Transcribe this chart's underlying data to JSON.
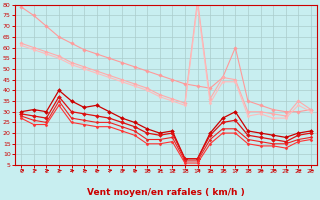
{
  "background_color": "#c8eef0",
  "grid_color": "#aacccc",
  "xlabel": "Vent moyen/en rafales ( km/h )",
  "xlim": [
    -0.5,
    23.5
  ],
  "ylim": [
    5,
    80
  ],
  "yticks": [
    5,
    10,
    15,
    20,
    25,
    30,
    35,
    40,
    45,
    50,
    55,
    60,
    65,
    70,
    75,
    80
  ],
  "xticks": [
    0,
    1,
    2,
    3,
    4,
    5,
    6,
    7,
    8,
    9,
    10,
    11,
    12,
    13,
    14,
    15,
    16,
    17,
    18,
    19,
    20,
    21,
    22,
    23
  ],
  "series": [
    {
      "x": [
        0,
        1,
        2,
        3,
        4,
        5,
        6,
        7,
        8,
        9,
        10,
        11,
        12,
        13,
        14,
        15,
        16,
        17,
        18,
        19,
        20,
        21,
        22,
        23
      ],
      "y": [
        79,
        75,
        70,
        65,
        62,
        59,
        57,
        55,
        53,
        51,
        49,
        47,
        45,
        43,
        42,
        41,
        46,
        60,
        35,
        33,
        31,
        30,
        30,
        31
      ],
      "color": "#ff9999",
      "lw": 0.8,
      "marker": "D",
      "ms": 1.8
    },
    {
      "x": [
        0,
        1,
        2,
        3,
        4,
        5,
        6,
        7,
        8,
        9,
        10,
        11,
        12,
        13,
        14,
        15,
        16,
        17,
        18,
        19,
        20,
        21,
        22,
        23
      ],
      "y": [
        62,
        60,
        58,
        56,
        53,
        51,
        49,
        47,
        45,
        43,
        41,
        38,
        36,
        34,
        82,
        36,
        46,
        45,
        30,
        30,
        29,
        28,
        35,
        31
      ],
      "color": "#ffaaaa",
      "lw": 0.8,
      "marker": "D",
      "ms": 1.8
    },
    {
      "x": [
        0,
        1,
        2,
        3,
        4,
        5,
        6,
        7,
        8,
        9,
        10,
        11,
        12,
        13,
        14,
        15,
        16,
        17,
        18,
        19,
        20,
        21,
        22,
        23
      ],
      "y": [
        61,
        59,
        57,
        55,
        52,
        50,
        48,
        46,
        44,
        42,
        40,
        37,
        35,
        33,
        80,
        34,
        44,
        44,
        28,
        29,
        27,
        27,
        33,
        30
      ],
      "color": "#ffbbbb",
      "lw": 0.8,
      "marker": "D",
      "ms": 1.5
    },
    {
      "x": [
        0,
        1,
        2,
        3,
        4,
        5,
        6,
        7,
        8,
        9,
        10,
        11,
        12,
        13,
        14,
        15,
        16,
        17,
        18,
        19,
        20,
        21,
        22,
        23
      ],
      "y": [
        30,
        31,
        30,
        40,
        35,
        32,
        33,
        30,
        27,
        25,
        22,
        20,
        21,
        8,
        8,
        20,
        27,
        30,
        21,
        20,
        19,
        18,
        20,
        21
      ],
      "color": "#cc0000",
      "lw": 0.9,
      "marker": "D",
      "ms": 2.0
    },
    {
      "x": [
        0,
        1,
        2,
        3,
        4,
        5,
        6,
        7,
        8,
        9,
        10,
        11,
        12,
        13,
        14,
        15,
        16,
        17,
        18,
        19,
        20,
        21,
        22,
        23
      ],
      "y": [
        29,
        28,
        27,
        37,
        30,
        29,
        28,
        27,
        25,
        23,
        20,
        19,
        20,
        8,
        8,
        19,
        25,
        26,
        19,
        18,
        17,
        16,
        19,
        20
      ],
      "color": "#dd1111",
      "lw": 0.9,
      "marker": "D",
      "ms": 2.0
    },
    {
      "x": [
        0,
        1,
        2,
        3,
        4,
        5,
        6,
        7,
        8,
        9,
        10,
        11,
        12,
        13,
        14,
        15,
        16,
        17,
        18,
        19,
        20,
        21,
        22,
        23
      ],
      "y": [
        28,
        26,
        25,
        35,
        27,
        26,
        25,
        25,
        23,
        21,
        17,
        17,
        18,
        7,
        7,
        17,
        22,
        22,
        17,
        16,
        15,
        15,
        17,
        18
      ],
      "color": "#ee2222",
      "lw": 0.8,
      "marker": "D",
      "ms": 1.5
    },
    {
      "x": [
        0,
        1,
        2,
        3,
        4,
        5,
        6,
        7,
        8,
        9,
        10,
        11,
        12,
        13,
        14,
        15,
        16,
        17,
        18,
        19,
        20,
        21,
        22,
        23
      ],
      "y": [
        27,
        24,
        24,
        33,
        25,
        24,
        23,
        23,
        21,
        19,
        15,
        15,
        16,
        6,
        6,
        15,
        20,
        20,
        15,
        14,
        14,
        13,
        16,
        17
      ],
      "color": "#ff3333",
      "lw": 0.8,
      "marker": "D",
      "ms": 1.5
    }
  ],
  "arrow_directions": [
    45,
    45,
    0,
    0,
    0,
    0,
    0,
    0,
    45,
    0,
    45,
    0,
    45,
    45,
    45,
    0,
    45,
    45,
    45,
    0,
    45,
    45,
    0,
    0
  ],
  "arrow_color": "#cc0000",
  "xlabel_color": "#cc0000",
  "tick_color": "#cc0000",
  "spine_color": "#cc0000",
  "xlabel_fontsize": 6.5,
  "tick_fontsize": 4.5
}
